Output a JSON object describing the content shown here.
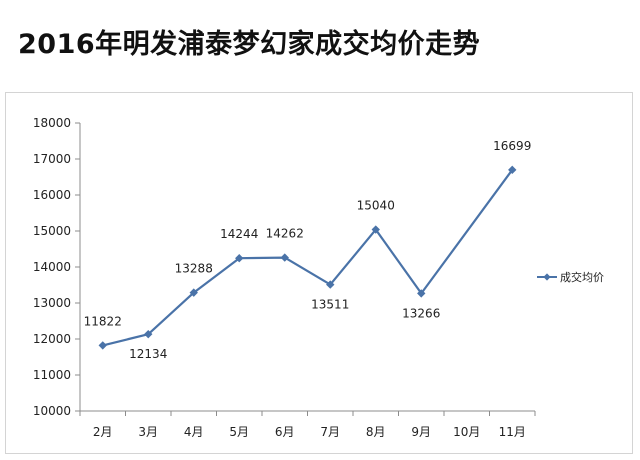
{
  "chart_data": {
    "type": "line",
    "title": "2016年明发浦泰梦幻家成交均价走势",
    "categories": [
      "2月",
      "3月",
      "4月",
      "5月",
      "6月",
      "7月",
      "8月",
      "9月",
      "10月",
      "11月"
    ],
    "series": [
      {
        "name": "成交均价",
        "values": [
          11822,
          12134,
          13288,
          14244,
          14262,
          13511,
          15040,
          13266,
          null,
          16699
        ],
        "color": "#4a73a8"
      }
    ],
    "data_labels": [
      "11822",
      "12134",
      "13288",
      "14244",
      "14262",
      "13511",
      "15040",
      "13266",
      "",
      "16699"
    ],
    "y_ticks": [
      "10000",
      "11000",
      "12000",
      "13000",
      "14000",
      "15000",
      "16000",
      "17000",
      "18000"
    ],
    "ylim": [
      10000,
      18000
    ],
    "grid": false,
    "legend_position": "right",
    "connect_gaps": true
  }
}
